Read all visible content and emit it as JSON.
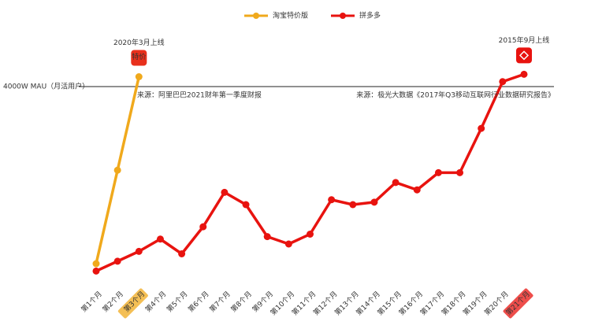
{
  "chart_data": {
    "type": "line",
    "categories": [
      "第1个月",
      "第2个月",
      "第3个月",
      "第4个月",
      "第5个月",
      "第6个月",
      "第7个月",
      "第8个月",
      "第9个月",
      "第10个月",
      "第11个月",
      "第12个月",
      "第13个月",
      "第14个月",
      "第15个月",
      "第16个月",
      "第17个月",
      "第18个月",
      "第19个月",
      "第20个月",
      "第21个月"
    ],
    "series": [
      {
        "name": "淘宝特价版",
        "color": "#f0a91c",
        "values": [
          400,
          2300,
          4200,
          null,
          null,
          null,
          null,
          null,
          null,
          null,
          null,
          null,
          null,
          null,
          null,
          null,
          null,
          null,
          null,
          null,
          null
        ],
        "annotation": "2020年3月上线",
        "icon_text": "特价",
        "source": "来源：阿里巴巴2021财年第一季度财报",
        "highlight_category": 2
      },
      {
        "name": "拼多多",
        "color": "#e8130f",
        "values": [
          250,
          450,
          650,
          900,
          600,
          1150,
          1850,
          1600,
          950,
          800,
          1000,
          1700,
          1600,
          1650,
          2050,
          1900,
          2250,
          2250,
          3150,
          4100,
          4250
        ],
        "annotation": "2015年9月上线",
        "source": "来源：极光大数据《2017年Q3移动互联网行业数据研究报告》",
        "highlight_category": 20
      }
    ],
    "reference_line": {
      "value": 4000,
      "label": "4000W MAU（月活用户）"
    }
  }
}
